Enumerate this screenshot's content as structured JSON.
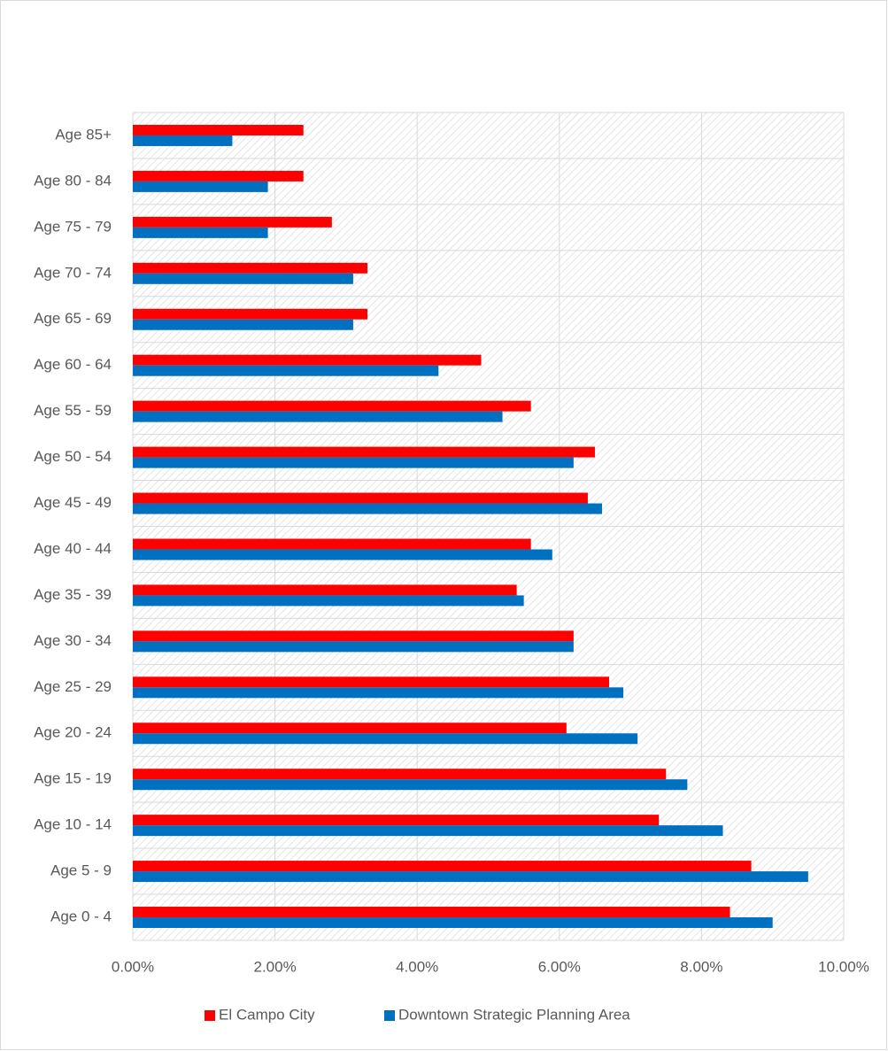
{
  "chart_data": {
    "type": "hbar",
    "categories": [
      "Age 0 - 4",
      "Age 5 - 9",
      "Age 10 - 14",
      "Age 15 - 19",
      "Age 20 - 24",
      "Age 25 - 29",
      "Age 30 - 34",
      "Age 35 - 39",
      "Age 40 - 44",
      "Age 45 - 49",
      "Age 50 - 54",
      "Age 55 - 59",
      "Age 60 - 64",
      "Age 65 - 69",
      "Age 70 - 74",
      "Age 75 - 79",
      "Age 80 - 84",
      "Age 85+"
    ],
    "series": [
      {
        "name": "El Campo City",
        "color": "#ff0000",
        "values": [
          8.4,
          8.7,
          7.4,
          7.5,
          6.1,
          6.7,
          6.2,
          5.4,
          5.6,
          6.4,
          6.5,
          5.6,
          4.9,
          3.3,
          3.3,
          2.8,
          2.4,
          2.4
        ]
      },
      {
        "name": "Downtown Strategic Planning Area",
        "color": "#0070c0",
        "values": [
          9.0,
          9.5,
          8.3,
          7.8,
          7.1,
          6.9,
          6.2,
          5.5,
          5.9,
          6.6,
          6.2,
          5.2,
          4.3,
          3.1,
          3.1,
          1.9,
          1.9,
          1.4
        ]
      }
    ],
    "xlim": [
      0,
      10
    ],
    "xticks": [
      {
        "value": 0,
        "label": "0.00%"
      },
      {
        "value": 2,
        "label": "2.00%"
      },
      {
        "value": 4,
        "label": "4.00%"
      },
      {
        "value": 6,
        "label": "6.00%"
      },
      {
        "value": 8,
        "label": "8.00%"
      },
      {
        "value": 10,
        "label": "10.00%"
      }
    ],
    "grid": true,
    "legend": "bottom"
  }
}
